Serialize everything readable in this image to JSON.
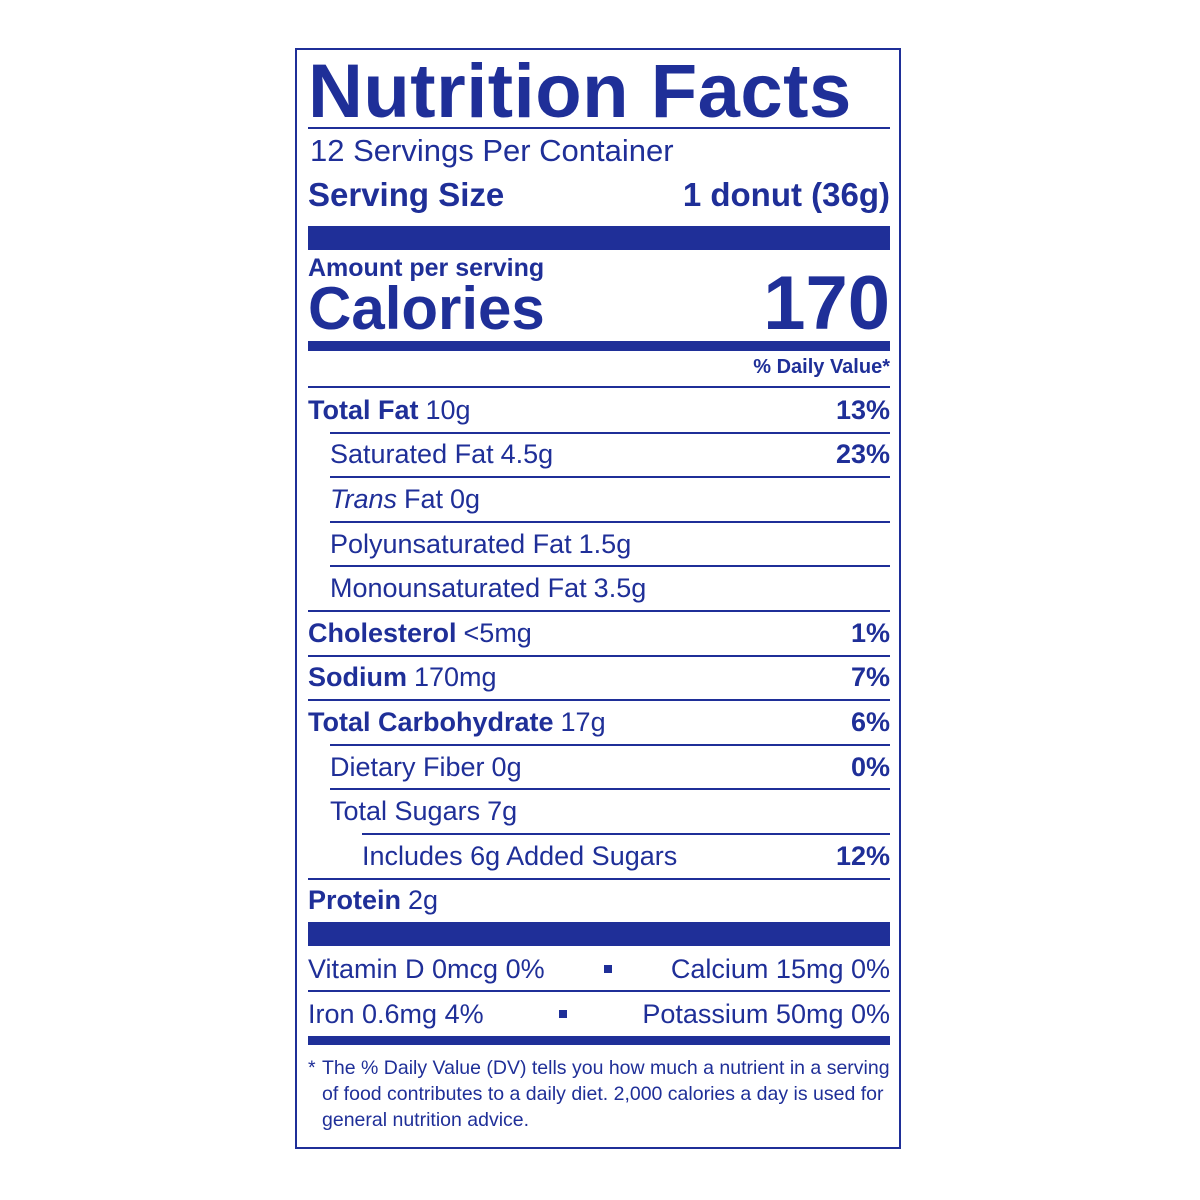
{
  "title": "Nutrition Facts",
  "servings": "12 Servings Per Container",
  "serving_size": {
    "label": "Serving Size",
    "value": "1 donut (36g)"
  },
  "amount_per_serving": "Amount per serving",
  "calories": {
    "label": "Calories",
    "value": "170"
  },
  "daily_value_header": "% Daily Value*",
  "nutrients": [
    {
      "name": "Total Fat",
      "amount": "10g",
      "dv": "13%",
      "level": 0,
      "bold": true
    },
    {
      "name": "Saturated Fat",
      "amount": "4.5g",
      "dv": "23%",
      "level": 1,
      "bold": false
    },
    {
      "name_italic": "Trans",
      "name": "Fat",
      "amount": "0g",
      "level": 1,
      "bold": false
    },
    {
      "name": "Polyunsaturated Fat",
      "amount": "1.5g",
      "level": 1,
      "bold": false
    },
    {
      "name": "Monounsaturated Fat",
      "amount": "3.5g",
      "level": 1,
      "bold": false
    },
    {
      "name": "Cholesterol",
      "amount": "<5mg",
      "dv": "1%",
      "level": 0,
      "bold": true
    },
    {
      "name": "Sodium",
      "amount": "170mg",
      "dv": "7%",
      "level": 0,
      "bold": true
    },
    {
      "name": "Total Carbohydrate",
      "amount": "17g",
      "dv": "6%",
      "level": 0,
      "bold": true
    },
    {
      "name": "Dietary Fiber",
      "amount": "0g",
      "dv": "0%",
      "level": 1,
      "bold": false
    },
    {
      "name": "Total Sugars",
      "amount": "7g",
      "level": 1,
      "bold": false
    },
    {
      "name": "Includes 6g Added Sugars",
      "dv": "12%",
      "level": 2,
      "bold": false
    },
    {
      "name": "Protein",
      "amount": "2g",
      "level": 0,
      "bold": true
    }
  ],
  "vitamins": [
    [
      "Vitamin D 0mcg 0%",
      "Calcium 15mg 0%"
    ],
    [
      "Iron 0.6mg 4%",
      "Potassium 50mg 0%"
    ]
  ],
  "footnote": {
    "marker": "*",
    "text": "The % Daily Value (DV) tells you how much a nutrient in a serving of food contributes to a daily diet. 2,000 calories a day is used for general nutrition advice."
  }
}
